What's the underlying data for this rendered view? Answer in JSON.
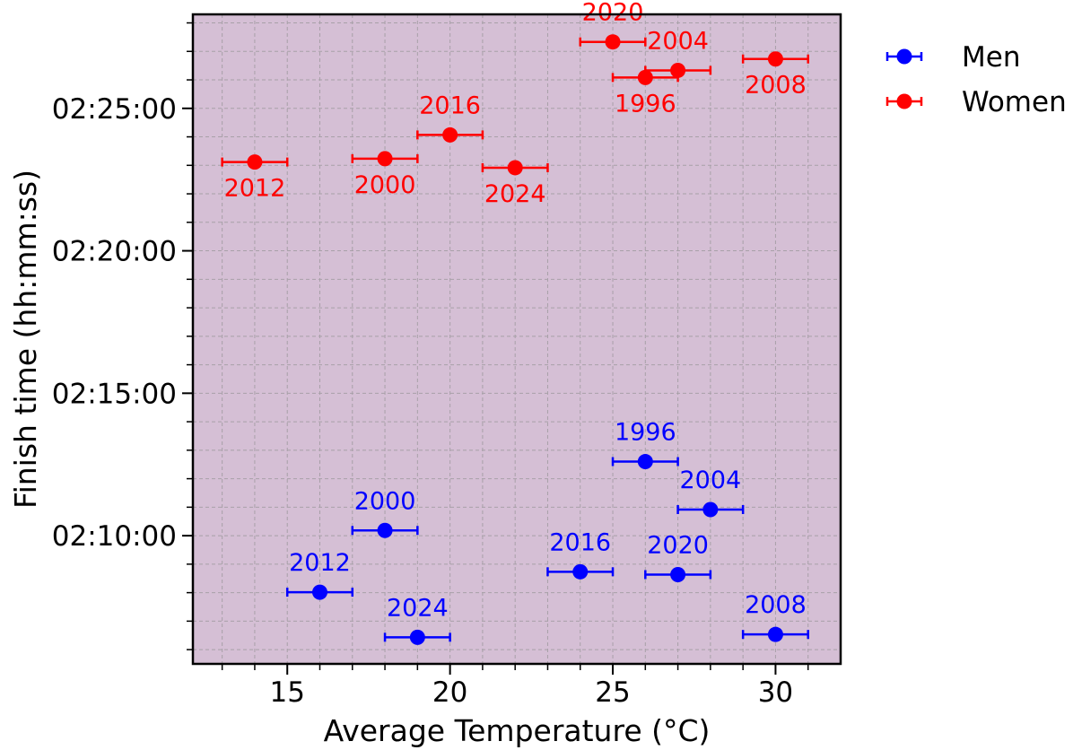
{
  "chart_data": {
    "type": "scatter",
    "xlabel": "Average Temperature (°C)",
    "ylabel": "Finish time (hh:mm:ss)",
    "xlim": [
      12.1,
      32
    ],
    "ylim": [
      "02:05:30",
      "02:28:18"
    ],
    "x_ticks": [
      15,
      20,
      25,
      30
    ],
    "y_ticks": [
      "02:10:00",
      "02:15:00",
      "02:20:00",
      "02:25:00"
    ],
    "x_error": 1,
    "grid": true,
    "legend_placement": "outside-upper-right",
    "series": [
      {
        "name": "Men",
        "color": "#0000ff",
        "points": [
          {
            "year": "1996",
            "temp": 26,
            "time": "02:12:36"
          },
          {
            "year": "2000",
            "temp": 18,
            "time": "02:10:11"
          },
          {
            "year": "2004",
            "temp": 28,
            "time": "02:10:55"
          },
          {
            "year": "2008",
            "temp": 30,
            "time": "02:06:32"
          },
          {
            "year": "2012",
            "temp": 16,
            "time": "02:08:01"
          },
          {
            "year": "2016",
            "temp": 24,
            "time": "02:08:44"
          },
          {
            "year": "2020",
            "temp": 27,
            "time": "02:08:38"
          },
          {
            "year": "2024",
            "temp": 19,
            "time": "02:06:26"
          }
        ]
      },
      {
        "name": "Women",
        "color": "#ff0000",
        "points": [
          {
            "year": "1996",
            "temp": 26,
            "time": "02:26:05"
          },
          {
            "year": "2000",
            "temp": 18,
            "time": "02:23:14"
          },
          {
            "year": "2004",
            "temp": 27,
            "time": "02:26:20"
          },
          {
            "year": "2008",
            "temp": 30,
            "time": "02:26:44"
          },
          {
            "year": "2012",
            "temp": 14,
            "time": "02:23:07"
          },
          {
            "year": "2016",
            "temp": 20,
            "time": "02:24:04"
          },
          {
            "year": "2020",
            "temp": 25,
            "time": "02:27:20"
          },
          {
            "year": "2024",
            "temp": 22,
            "time": "02:22:55"
          }
        ]
      }
    ]
  }
}
